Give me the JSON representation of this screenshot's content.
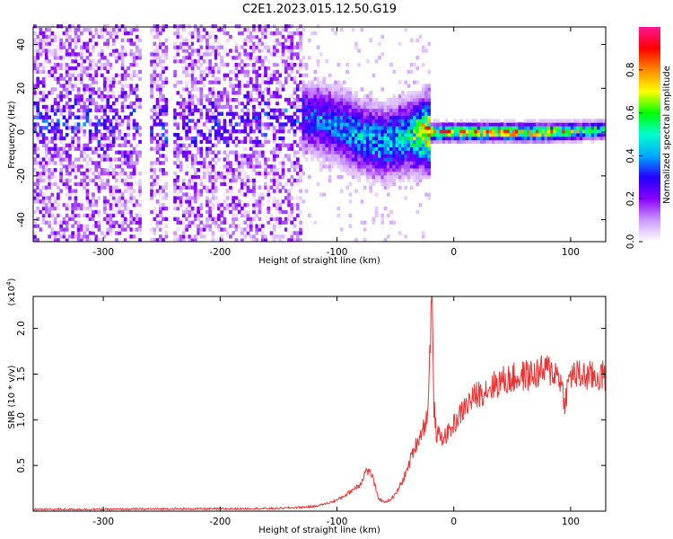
{
  "title": "C2E1.2023.015.12.50.G19",
  "chart_data": [
    {
      "type": "heatmap",
      "xlabel": "Height of straight line (km)",
      "ylabel": "Frequency (Hz)",
      "xlim": [
        -360,
        130
      ],
      "ylim": [
        -50,
        48
      ],
      "xticks": [
        -300,
        -200,
        -100,
        0,
        100
      ],
      "yticks": [
        -40,
        -20,
        0,
        20,
        40
      ],
      "colorbar": {
        "label": "Normalized spectral amplitude",
        "range": [
          0.0,
          1.0
        ],
        "ticks": [
          0.0,
          0.2,
          0.4,
          0.6,
          0.8
        ],
        "colormap": [
          "#ffffff",
          "#cc99ff",
          "#8800ff",
          "#2200ff",
          "#00aaff",
          "#00ffcc",
          "#00ff00",
          "#ffff00",
          "#ff8800",
          "#ff0000",
          "#ff1493"
        ]
      },
      "ridge": {
        "x": [
          -360,
          -300,
          -250,
          -200,
          -150,
          -120,
          -100,
          -80,
          -60,
          -40,
          -20,
          0,
          40,
          80,
          130
        ],
        "y": [
          5,
          4,
          3,
          2,
          8,
          6,
          3,
          -2,
          -5,
          -2,
          0,
          0,
          0,
          0,
          1
        ],
        "amplitude": [
          0.18,
          0.18,
          0.22,
          0.25,
          0.3,
          0.35,
          0.4,
          0.45,
          0.45,
          0.5,
          0.85,
          0.8,
          0.8,
          0.8,
          0.55
        ]
      }
    },
    {
      "type": "line",
      "xlabel": "Height of straight line (km)",
      "ylabel": "SNR (10 * v/v)",
      "y_scale_label": "(x10",
      "y_scale_exp": "4",
      "y_scale_close": ")",
      "xlim": [
        -360,
        130
      ],
      "ylim": [
        0,
        2.35
      ],
      "xticks": [
        -300,
        -200,
        -100,
        0,
        100
      ],
      "yticks": [
        0.5,
        1.0,
        1.5,
        2.0
      ],
      "ytick_labels": [
        "0.5",
        "1.0",
        "1.5",
        "2.0"
      ],
      "color": "#ee3333",
      "series": [
        {
          "x": [
            -360,
            -300,
            -250,
            -200,
            -150,
            -120,
            -110,
            -100,
            -90,
            -80,
            -75,
            -70,
            -65,
            -60,
            -55,
            -50,
            -45,
            -40,
            -35,
            -30,
            -25,
            -22,
            -19,
            -17,
            -15,
            -10,
            -5,
            0,
            10,
            20,
            30,
            40,
            50,
            60,
            70,
            80,
            90,
            95,
            100,
            110,
            120,
            130
          ],
          "y": [
            0.02,
            0.02,
            0.025,
            0.025,
            0.03,
            0.05,
            0.08,
            0.12,
            0.2,
            0.3,
            0.45,
            0.4,
            0.15,
            0.1,
            0.12,
            0.18,
            0.3,
            0.45,
            0.65,
            0.8,
            0.95,
            1.1,
            2.35,
            1.15,
            0.85,
            0.8,
            0.85,
            0.95,
            1.15,
            1.28,
            1.35,
            1.42,
            1.45,
            1.48,
            1.5,
            1.55,
            1.5,
            1.2,
            1.5,
            1.48,
            1.47,
            1.48
          ]
        }
      ]
    }
  ]
}
